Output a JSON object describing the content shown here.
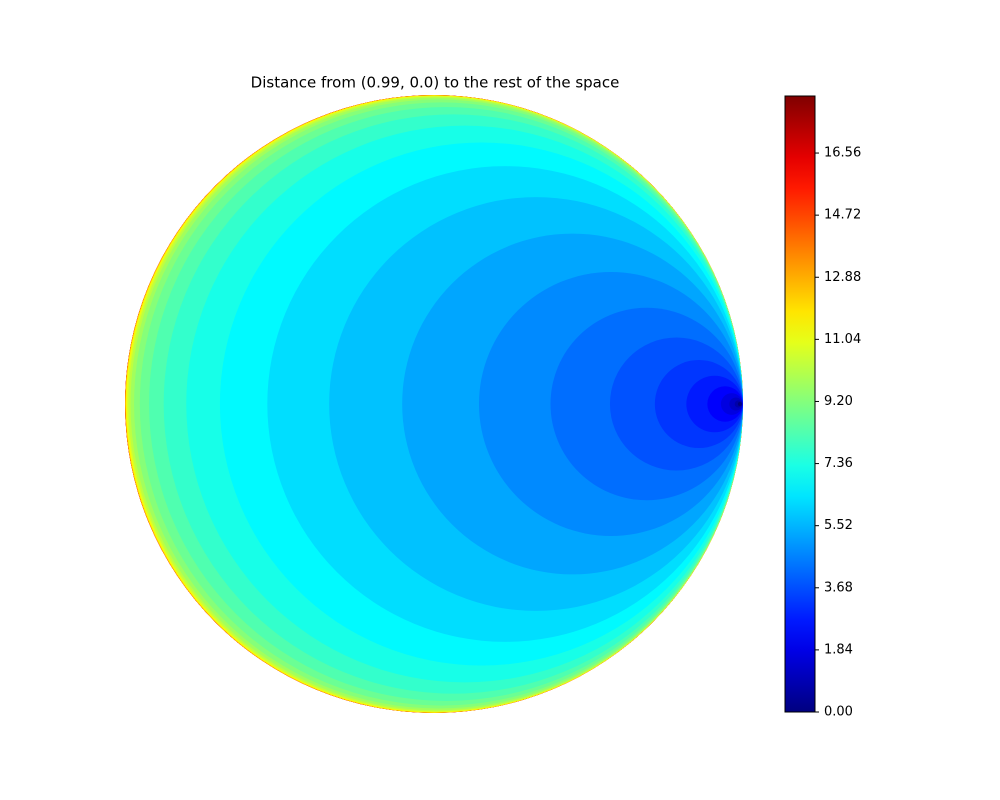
{
  "chart_data": {
    "type": "disk-distance",
    "title": "Distance from (0.99, 0.0) to the rest of the space",
    "point": [
      0.99,
      0.0
    ],
    "levels": [
      0.5,
      1,
      1.5,
      2,
      2.5,
      3,
      3.5,
      4,
      4.5,
      5,
      5.5,
      6,
      6.5,
      7,
      7.5,
      8,
      8.5,
      9,
      9.5,
      10,
      10.5,
      11,
      11.5,
      12,
      12.5,
      13,
      13.5,
      14,
      14.5,
      15,
      15.5,
      16,
      16.5,
      17,
      17.5,
      18
    ],
    "colormap": "jet",
    "clim": [
      0,
      18.25
    ],
    "cticks": [
      {
        "value": 0,
        "label": "0.00"
      },
      1.84,
      3.68,
      5.52,
      7.36,
      {
        "value": 9.2,
        "label": "9.20"
      },
      11.04,
      12.88,
      14.72,
      16.56
    ]
  }
}
